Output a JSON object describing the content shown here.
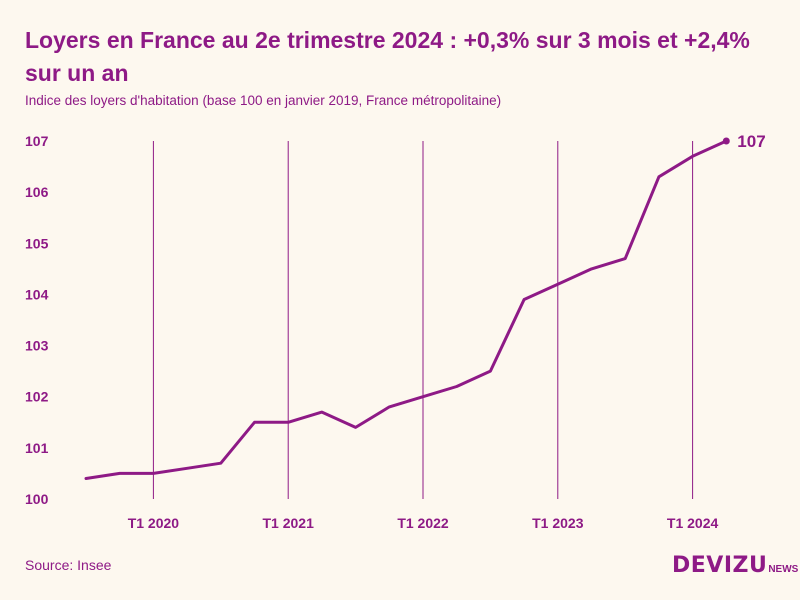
{
  "header": {
    "title": "Loyers en France au 2e trimestre 2024 : +0,3% sur 3 mois et +2,4% sur un an",
    "subtitle": "Indice des loyers d'habitation (base 100 en janvier 2019, France métropolitaine)"
  },
  "footer": {
    "source": "Source: Insee",
    "logo_main": "DEVIZU",
    "logo_sub": "NEWS"
  },
  "colors": {
    "accent": "#8e1a86",
    "background": "#fdf8ef"
  },
  "chart_data": {
    "type": "line",
    "title": "Loyers en France au 2e trimestre 2024 : +0,3% sur 3 mois et +2,4% sur un an",
    "subtitle": "Indice des loyers d'habitation (base 100 en janvier 2019, France métropolitaine)",
    "xlabel": "",
    "ylabel": "",
    "ylim": [
      100,
      107
    ],
    "y_ticks": [
      "100",
      "101",
      "102",
      "103",
      "104",
      "105",
      "106",
      "107"
    ],
    "x_ticks": [
      {
        "label": "T1 2020",
        "x": 2020.0
      },
      {
        "label": "T1 2021",
        "x": 2021.0
      },
      {
        "label": "T1 2022",
        "x": 2022.0
      },
      {
        "label": "T1 2023",
        "x": 2023.0
      },
      {
        "label": "T1 2024",
        "x": 2024.0
      }
    ],
    "xlim": [
      2019.5,
      2024.5
    ],
    "vertical_gridlines": true,
    "series": [
      {
        "x": [
          2019.5,
          2019.75,
          2020.0,
          2020.25,
          2020.5,
          2020.75,
          2021.0,
          2021.25,
          2021.5,
          2021.75,
          2022.0,
          2022.25,
          2022.5,
          2022.75,
          2023.0,
          2023.25,
          2023.5,
          2023.75,
          2024.0,
          2024.25
        ],
        "values": [
          100.4,
          100.5,
          100.5,
          100.6,
          100.7,
          101.5,
          101.5,
          101.7,
          101.4,
          101.8,
          102.0,
          102.2,
          102.5,
          103.9,
          104.2,
          104.5,
          104.7,
          106.3,
          106.7,
          107.0
        ]
      }
    ],
    "end_label": "107"
  }
}
